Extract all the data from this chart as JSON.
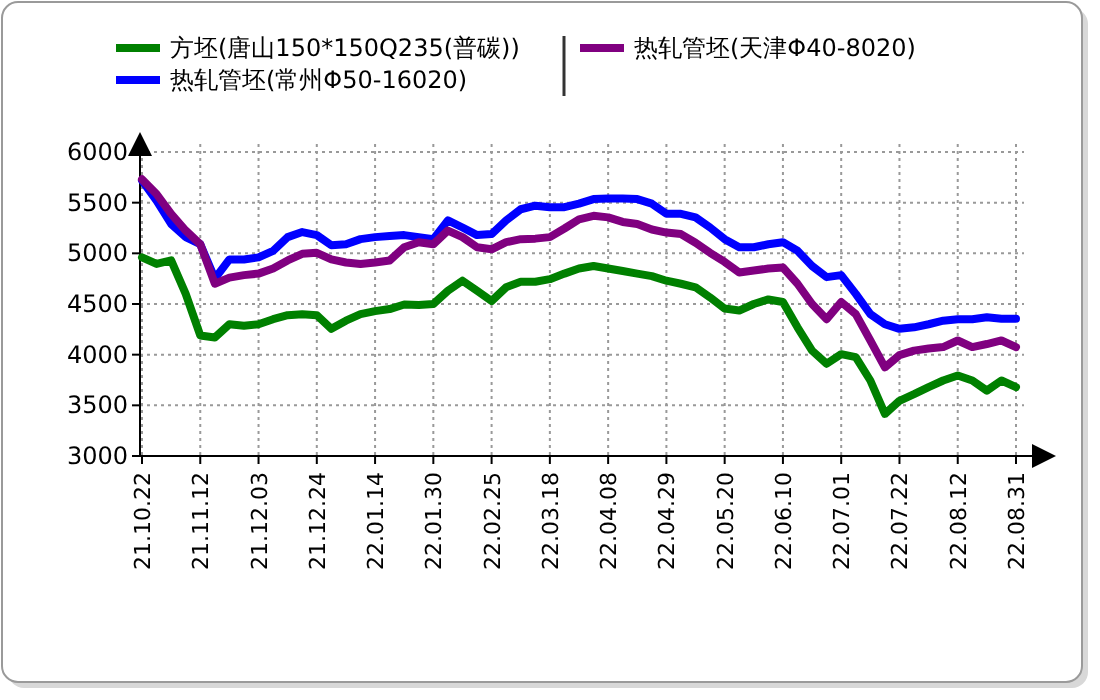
{
  "chart_data": {
    "type": "line",
    "categories": [
      "21.10.22",
      null,
      null,
      null,
      "21.11.12",
      null,
      null,
      null,
      "21.12.03",
      null,
      null,
      null,
      "21.12.24",
      null,
      null,
      null,
      "22.01.14",
      null,
      null,
      null,
      "22.01.30",
      null,
      null,
      null,
      "22.02.25",
      null,
      null,
      null,
      "22.03.18",
      null,
      null,
      null,
      "22.04.08",
      null,
      null,
      null,
      "22.04.29",
      null,
      null,
      null,
      "22.05.20",
      null,
      null,
      null,
      "22.06.10",
      null,
      null,
      null,
      "22.07.01",
      null,
      null,
      null,
      "22.07.22",
      null,
      null,
      null,
      "22.08.12",
      null,
      null,
      null,
      "22.08.31"
    ],
    "series": [
      {
        "name": "方坯(唐山150*150Q235(普碳))",
        "color": "#008000",
        "values": [
          4960,
          4895,
          4930,
          4600,
          4190,
          4170,
          4300,
          4285,
          4300,
          4350,
          4390,
          4400,
          4390,
          4255,
          4335,
          4400,
          4430,
          4450,
          4495,
          4490,
          4500,
          4630,
          4730,
          4630,
          4530,
          4665,
          4720,
          4720,
          4745,
          4800,
          4850,
          4875,
          4850,
          4825,
          4800,
          4775,
          4730,
          4700,
          4665,
          4565,
          4455,
          4435,
          4500,
          4545,
          4520,
          4270,
          4040,
          3910,
          4005,
          3975,
          3745,
          3415,
          3545,
          3610,
          3680,
          3745,
          3795,
          3745,
          3645,
          3745,
          3680
        ]
      },
      {
        "name": "热轧管坯(常州Φ50-16020)",
        "color": "#0000ff",
        "values": [
          5720,
          5520,
          5290,
          5160,
          5090,
          4750,
          4940,
          4940,
          4960,
          5025,
          5160,
          5210,
          5180,
          5080,
          5090,
          5140,
          5160,
          5170,
          5180,
          5160,
          5140,
          5325,
          5255,
          5180,
          5190,
          5325,
          5435,
          5470,
          5455,
          5455,
          5490,
          5535,
          5540,
          5540,
          5535,
          5490,
          5390,
          5390,
          5355,
          5255,
          5140,
          5060,
          5060,
          5090,
          5110,
          5025,
          4875,
          4765,
          4785,
          4600,
          4400,
          4300,
          4255,
          4270,
          4300,
          4335,
          4350,
          4350,
          4370,
          4355,
          4355
        ]
      },
      {
        "name": "热轧管坯(天津Φ40-8020)",
        "color": "#800080",
        "values": [
          5730,
          5585,
          5390,
          5225,
          5090,
          4700,
          4760,
          4785,
          4800,
          4850,
          4930,
          4995,
          5005,
          4940,
          4910,
          4895,
          4910,
          4930,
          5060,
          5110,
          5090,
          5225,
          5160,
          5060,
          5040,
          5110,
          5140,
          5145,
          5160,
          5245,
          5335,
          5370,
          5355,
          5310,
          5290,
          5235,
          5205,
          5190,
          5105,
          5005,
          4915,
          4810,
          4830,
          4850,
          4860,
          4700,
          4500,
          4350,
          4520,
          4400,
          4140,
          3875,
          3995,
          4040,
          4060,
          4075,
          4140,
          4075,
          4105,
          4140,
          4075
        ]
      }
    ],
    "ylim": [
      3000,
      6000
    ],
    "yticks": [
      3000,
      3500,
      4000,
      4500,
      5000,
      5500,
      6000
    ],
    "grid": true,
    "legend": "top"
  }
}
